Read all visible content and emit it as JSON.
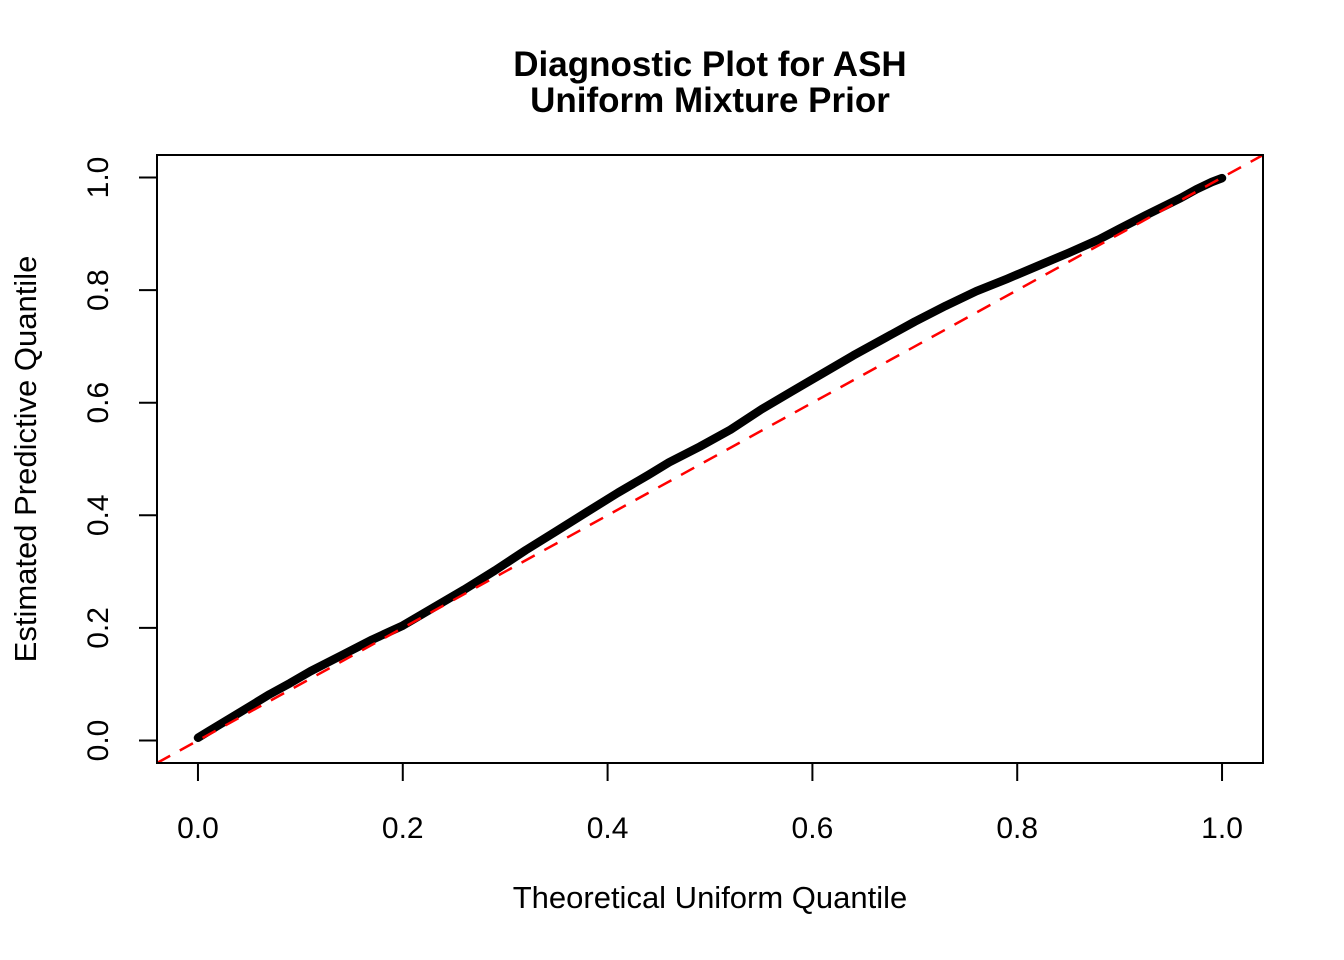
{
  "title": {
    "line1": "Diagnostic Plot for ASH",
    "line2": "Uniform Mixture Prior"
  },
  "axes": {
    "x": {
      "label": "Theoretical Uniform Quantile",
      "tick_labels": [
        "0.0",
        "0.2",
        "0.4",
        "0.6",
        "0.8",
        "1.0"
      ],
      "tick_values": [
        0.0,
        0.2,
        0.4,
        0.6,
        0.8,
        1.0
      ],
      "range": [
        -0.04,
        1.04
      ]
    },
    "y": {
      "label": "Estimated Predictive Quantile",
      "tick_labels": [
        "0.0",
        "0.2",
        "0.4",
        "0.6",
        "0.8",
        "1.0"
      ],
      "tick_values": [
        0.0,
        0.2,
        0.4,
        0.6,
        0.8,
        1.0
      ],
      "range": [
        -0.04,
        1.04
      ]
    }
  },
  "colors": {
    "curve": "#000000",
    "reference_line": "#FF0000",
    "axis": "#000000",
    "background": "#FFFFFF"
  },
  "chart_data": {
    "type": "line",
    "title": "Diagnostic Plot for ASH\nUniform Mixture Prior",
    "xlabel": "Theoretical Uniform Quantile",
    "ylabel": "Estimated Predictive Quantile",
    "xlim": [
      -0.04,
      1.04
    ],
    "ylim": [
      -0.04,
      1.04
    ],
    "grid": false,
    "legend": "none",
    "series": [
      {
        "name": "estimated-predictive-quantiles",
        "color": "#000000",
        "style": "solid",
        "stroke_width": 8.5,
        "points": [
          [
            0.0,
            0.005
          ],
          [
            0.01,
            0.016
          ],
          [
            0.03,
            0.038
          ],
          [
            0.05,
            0.06
          ],
          [
            0.07,
            0.082
          ],
          [
            0.09,
            0.102
          ],
          [
            0.11,
            0.123
          ],
          [
            0.14,
            0.151
          ],
          [
            0.17,
            0.179
          ],
          [
            0.2,
            0.204
          ],
          [
            0.23,
            0.236
          ],
          [
            0.26,
            0.268
          ],
          [
            0.29,
            0.302
          ],
          [
            0.32,
            0.338
          ],
          [
            0.35,
            0.372
          ],
          [
            0.38,
            0.406
          ],
          [
            0.41,
            0.44
          ],
          [
            0.44,
            0.472
          ],
          [
            0.46,
            0.494
          ],
          [
            0.49,
            0.522
          ],
          [
            0.52,
            0.552
          ],
          [
            0.55,
            0.588
          ],
          [
            0.58,
            0.62
          ],
          [
            0.61,
            0.652
          ],
          [
            0.64,
            0.684
          ],
          [
            0.67,
            0.714
          ],
          [
            0.7,
            0.744
          ],
          [
            0.73,
            0.772
          ],
          [
            0.76,
            0.798
          ],
          [
            0.79,
            0.82
          ],
          [
            0.82,
            0.843
          ],
          [
            0.85,
            0.866
          ],
          [
            0.88,
            0.89
          ],
          [
            0.9,
            0.909
          ],
          [
            0.92,
            0.928
          ],
          [
            0.94,
            0.946
          ],
          [
            0.96,
            0.964
          ],
          [
            0.975,
            0.979
          ],
          [
            0.99,
            0.992
          ],
          [
            1.0,
            0.999
          ]
        ]
      },
      {
        "name": "reference-diagonal",
        "color": "#FF0000",
        "style": "dashed",
        "stroke_width": 2.5,
        "points": [
          [
            -0.04,
            -0.04
          ],
          [
            1.04,
            1.04
          ]
        ]
      }
    ]
  }
}
